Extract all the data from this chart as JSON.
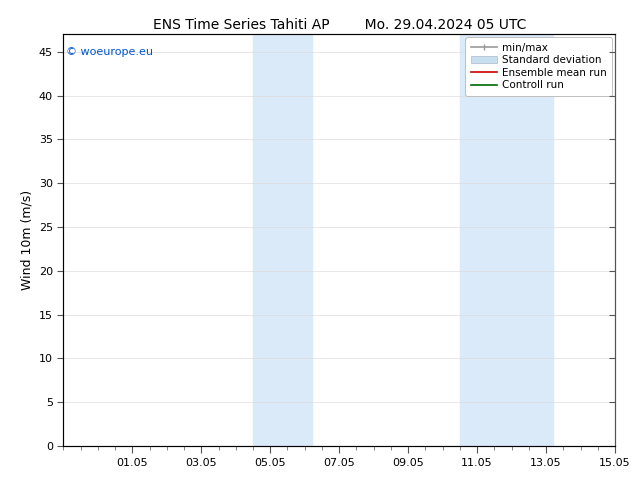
{
  "title": "ENS Time Series Tahiti AP        Mo. 29.04.2024 05 UTC",
  "ylabel": "Wind 10m (m/s)",
  "xlim_start": 29.0,
  "xlim_end": 45.0,
  "ylim": [
    0,
    47
  ],
  "yticks": [
    0,
    5,
    10,
    15,
    20,
    25,
    30,
    35,
    40,
    45
  ],
  "xtick_labels": [
    "01.05",
    "03.05",
    "05.05",
    "07.05",
    "09.05",
    "11.05",
    "13.05",
    "15.05"
  ],
  "xtick_positions": [
    31,
    33,
    35,
    37,
    39,
    41,
    43,
    45
  ],
  "xtick_minor_step": 0.5,
  "shaded_bands": [
    {
      "x_start": 34.5,
      "x_end": 35.5,
      "color": "#daeaf8"
    },
    {
      "x_start": 35.5,
      "x_end": 36.2,
      "color": "#daeaf8"
    },
    {
      "x_start": 40.5,
      "x_end": 41.5,
      "color": "#daeaf8"
    },
    {
      "x_start": 41.5,
      "x_end": 43.2,
      "color": "#daeaf8"
    }
  ],
  "watermark_text": "© woeurope.eu",
  "watermark_color": "#0055cc",
  "legend_items": [
    {
      "label": "min/max",
      "color": "#999999",
      "lw": 1.2,
      "ls": "-",
      "type": "errorbar"
    },
    {
      "label": "Standard deviation",
      "color": "#c8dff0",
      "lw": 6,
      "ls": "-",
      "type": "patch"
    },
    {
      "label": "Ensemble mean run",
      "color": "#cc0000",
      "lw": 1.2,
      "ls": "-",
      "type": "line"
    },
    {
      "label": "Controll run",
      "color": "#006600",
      "lw": 1.2,
      "ls": "-",
      "type": "line"
    }
  ],
  "bg_color": "#ffffff",
  "grid_color": "#dddddd",
  "title_fontsize": 10,
  "label_fontsize": 9,
  "tick_fontsize": 8,
  "legend_fontsize": 7.5
}
